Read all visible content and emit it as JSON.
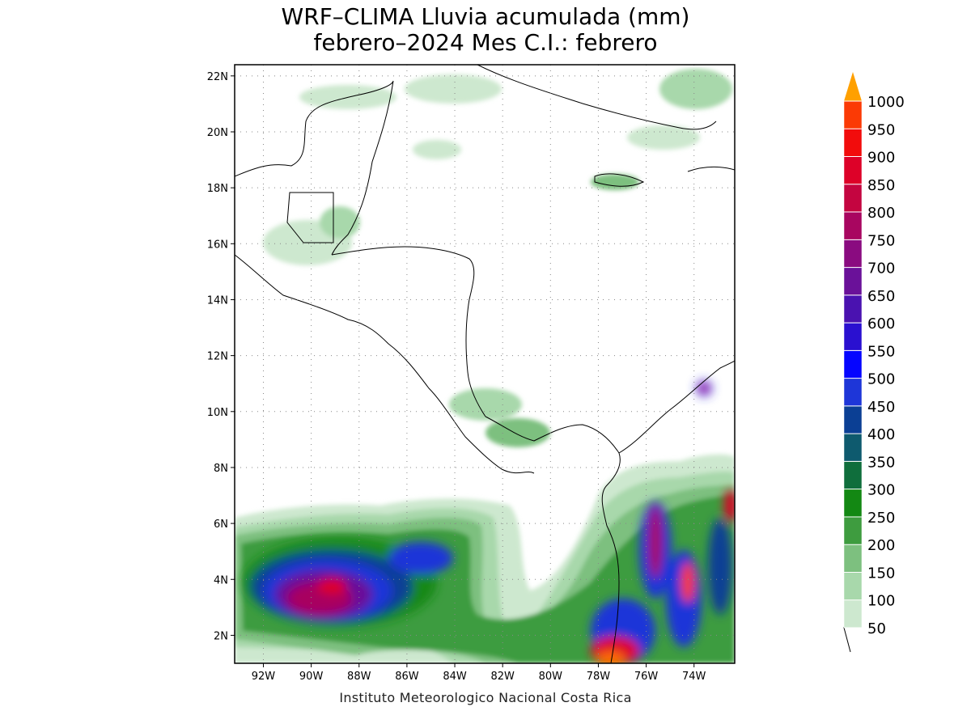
{
  "title": {
    "line1": "WRF–CLIMA Lluvia acumulada (mm)",
    "line2": "febrero–2024 Mes C.I.: febrero"
  },
  "credit": "Instituto Meteorologico Nacional Costa Rica",
  "map": {
    "lat_ticks": [
      "22N",
      "20N",
      "18N",
      "16N",
      "14N",
      "12N",
      "10N",
      "8N",
      "6N",
      "4N",
      "2N"
    ],
    "lon_ticks": [
      "92W",
      "90W",
      "88W",
      "86W",
      "84W",
      "82W",
      "80W",
      "78W",
      "76W",
      "74W"
    ],
    "lon_range": [
      -93.2,
      -72.3
    ],
    "lat_range": [
      1.0,
      22.4
    ],
    "grid": true
  },
  "colorbar": {
    "labels": [
      "50",
      "100",
      "150",
      "200",
      "250",
      "300",
      "350",
      "400",
      "450",
      "500",
      "550",
      "600",
      "650",
      "700",
      "750",
      "800",
      "850",
      "900",
      "950",
      "1000"
    ],
    "colors": [
      "#cde8cf",
      "#a8d8ab",
      "#7dc07f",
      "#3e9c3f",
      "#138813",
      "#0f6e3c",
      "#0e5a6e",
      "#0b3f94",
      "#1e36d8",
      "#0505ff",
      "#2a10d0",
      "#4a12b0",
      "#6a1199",
      "#8a0b80",
      "#a80660",
      "#c40540",
      "#dd0128",
      "#f20c0c",
      "#fb3a05",
      "#fd6a00",
      "#ffa000"
    ]
  }
}
